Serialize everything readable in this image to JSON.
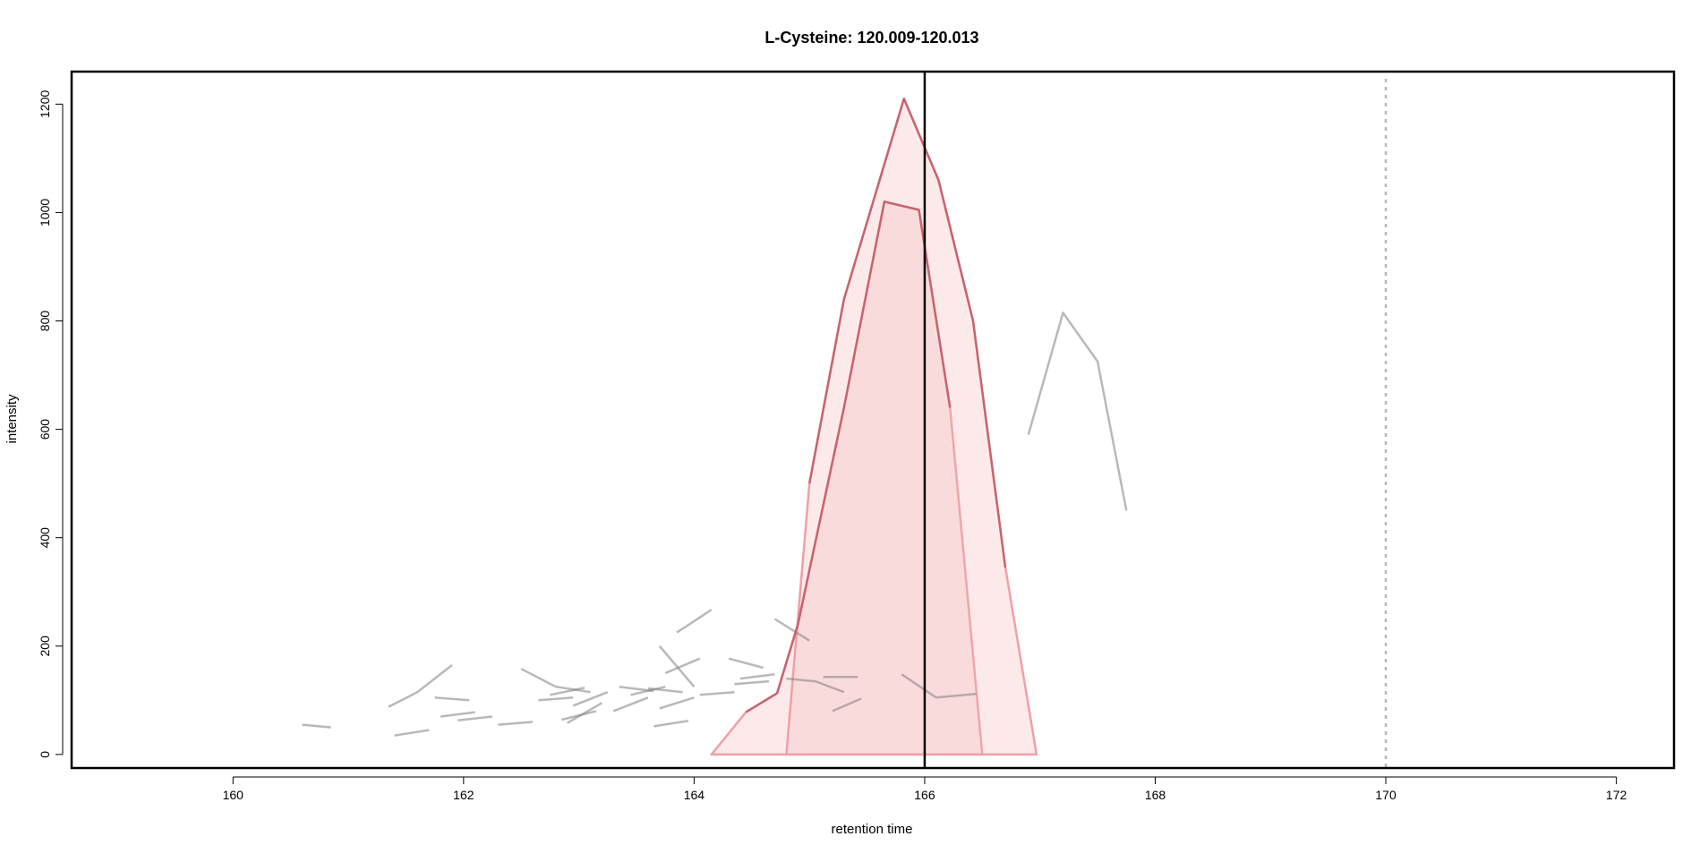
{
  "chart_data": {
    "type": "line",
    "title": "L-Cysteine: 120.009-120.013",
    "xlabel": "retention time",
    "ylabel": "intensity",
    "xlim": [
      158.6,
      172.5
    ],
    "ylim": [
      -25,
      1260
    ],
    "x_ticks": [
      160,
      162,
      164,
      166,
      168,
      170,
      172
    ],
    "y_ticks": [
      0,
      200,
      400,
      600,
      800,
      1000,
      1200
    ],
    "grid": false,
    "legend": "none",
    "colors": {
      "noise": "#b0b0b0",
      "peak_stroke": "#c8646e",
      "peak_area_edge": "#f0a0a6",
      "peak_area_fill": "#f5b4b8",
      "marker_line": "#000000",
      "ref_line": "#b8b8b8"
    },
    "marker_rt": 166.0,
    "reference_rt": 170.0,
    "peak_traces": [
      [
        [
          164.45,
          78
        ],
        [
          164.72,
          113
        ],
        [
          164.9,
          240
        ],
        [
          165.3,
          640
        ],
        [
          165.65,
          1020
        ],
        [
          165.95,
          1005
        ],
        [
          166.22,
          640
        ]
      ],
      [
        [
          165.0,
          500
        ],
        [
          165.3,
          840
        ],
        [
          165.82,
          1210
        ],
        [
          166.12,
          1060
        ],
        [
          166.42,
          800
        ],
        [
          166.7,
          345
        ]
      ]
    ],
    "peak_areas": [
      [
        [
          164.15,
          0
        ],
        [
          164.45,
          78
        ],
        [
          164.72,
          113
        ],
        [
          164.9,
          240
        ],
        [
          165.3,
          640
        ],
        [
          165.65,
          1020
        ],
        [
          165.95,
          1005
        ],
        [
          166.22,
          640
        ],
        [
          166.5,
          0
        ]
      ],
      [
        [
          164.8,
          0
        ],
        [
          165.0,
          500
        ],
        [
          165.3,
          840
        ],
        [
          165.82,
          1210
        ],
        [
          166.12,
          1060
        ],
        [
          166.42,
          800
        ],
        [
          166.7,
          345
        ],
        [
          166.97,
          0
        ]
      ]
    ],
    "noise_segments": [
      [
        [
          160.6,
          55
        ],
        [
          160.85,
          50
        ]
      ],
      [
        [
          161.35,
          88
        ],
        [
          161.6,
          115
        ],
        [
          161.9,
          165
        ]
      ],
      [
        [
          161.4,
          35
        ],
        [
          161.7,
          45
        ]
      ],
      [
        [
          161.75,
          105
        ],
        [
          162.05,
          100
        ]
      ],
      [
        [
          161.8,
          70
        ],
        [
          162.1,
          78
        ]
      ],
      [
        [
          161.95,
          63
        ],
        [
          162.25,
          70
        ]
      ],
      [
        [
          162.3,
          55
        ],
        [
          162.6,
          60
        ]
      ],
      [
        [
          162.5,
          158
        ],
        [
          162.8,
          125
        ]
      ],
      [
        [
          162.65,
          100
        ],
        [
          162.95,
          105
        ]
      ],
      [
        [
          162.75,
          110
        ],
        [
          163.05,
          123
        ]
      ],
      [
        [
          162.8,
          125
        ],
        [
          163.1,
          115
        ]
      ],
      [
        [
          162.85,
          64
        ],
        [
          163.15,
          80
        ]
      ],
      [
        [
          162.9,
          58
        ],
        [
          163.2,
          95
        ]
      ],
      [
        [
          162.95,
          90
        ],
        [
          163.25,
          115
        ]
      ],
      [
        [
          163.3,
          80
        ],
        [
          163.6,
          105
        ]
      ],
      [
        [
          163.35,
          125
        ],
        [
          163.65,
          117
        ]
      ],
      [
        [
          163.45,
          110
        ],
        [
          163.75,
          125
        ]
      ],
      [
        [
          163.6,
          122
        ],
        [
          163.9,
          115
        ]
      ],
      [
        [
          163.65,
          52
        ],
        [
          163.95,
          62
        ]
      ],
      [
        [
          163.7,
          200
        ],
        [
          164.0,
          125
        ]
      ],
      [
        [
          163.7,
          85
        ],
        [
          164.0,
          105
        ]
      ],
      [
        [
          163.75,
          150
        ],
        [
          164.05,
          177
        ]
      ],
      [
        [
          163.85,
          225
        ],
        [
          164.15,
          267
        ]
      ],
      [
        [
          164.05,
          110
        ],
        [
          164.35,
          115
        ]
      ],
      [
        [
          164.3,
          177
        ],
        [
          164.6,
          160
        ]
      ],
      [
        [
          164.35,
          130
        ],
        [
          164.65,
          135
        ]
      ],
      [
        [
          164.4,
          140
        ],
        [
          164.7,
          148
        ]
      ],
      [
        [
          164.7,
          250
        ],
        [
          165.0,
          210
        ]
      ],
      [
        [
          164.8,
          140
        ],
        [
          165.05,
          135
        ],
        [
          165.3,
          115
        ]
      ],
      [
        [
          165.12,
          143
        ],
        [
          165.42,
          143
        ]
      ],
      [
        [
          165.2,
          80
        ],
        [
          165.45,
          103
        ]
      ],
      [
        [
          165.8,
          148
        ],
        [
          166.1,
          105
        ],
        [
          166.45,
          112
        ]
      ],
      [
        [
          166.9,
          590
        ],
        [
          167.2,
          815
        ],
        [
          167.5,
          725
        ],
        [
          167.75,
          450
        ]
      ]
    ]
  }
}
